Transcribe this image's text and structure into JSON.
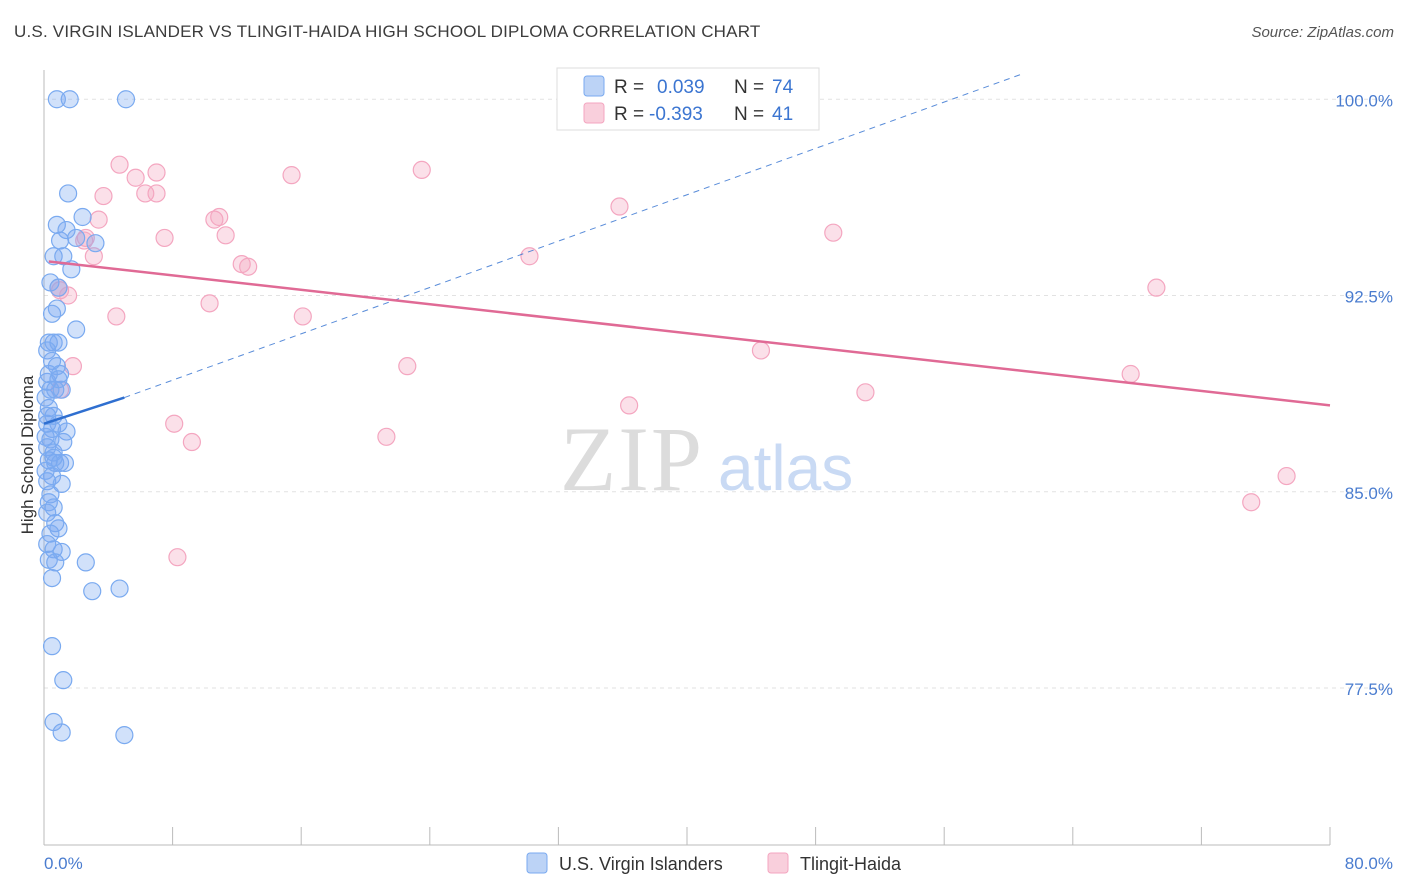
{
  "chart_data": {
    "type": "scatter",
    "title": "U.S. VIRGIN ISLANDER VS TLINGIT-HAIDA HIGH SCHOOL DIPLOMA CORRELATION CHART",
    "source": "Source: ZipAtlas.com",
    "ylabel": "High School Diploma",
    "xlabel": "",
    "xlim": [
      0,
      80
    ],
    "ylim": [
      71.5,
      101.5
    ],
    "x_tick_labels": [
      "0.0%",
      "80.0%"
    ],
    "y_ticks": [
      77.5,
      85.0,
      92.5,
      100.0
    ],
    "y_tick_labels": [
      "77.5%",
      "85.0%",
      "92.5%",
      "100.0%"
    ],
    "watermark": {
      "zip": "ZIP",
      "atlas": "atlas"
    },
    "legend": {
      "entries": [
        {
          "r_label": "R =",
          "r_value": "0.039",
          "n_label": "N =",
          "n_value": "74"
        },
        {
          "r_label": "R =",
          "r_value": "-0.393",
          "n_label": "N =",
          "n_value": "41"
        }
      ]
    },
    "series": [
      {
        "name": "U.S. Virgin Islanders",
        "color": "#7aaaf0",
        "line_color": "#2f6fd0",
        "trend": {
          "x": [
            0.0,
            5.0
          ],
          "y": [
            87.6,
            88.6
          ]
        },
        "trend_ext": {
          "x": [
            5.0,
            61.0
          ],
          "y": [
            88.6,
            101.0
          ]
        },
        "points": [
          [
            0.8,
            100.0
          ],
          [
            1.6,
            100.0
          ],
          [
            5.1,
            100.0
          ],
          [
            1.5,
            96.4
          ],
          [
            2.4,
            95.5
          ],
          [
            0.8,
            95.2
          ],
          [
            1.0,
            94.6
          ],
          [
            1.4,
            95.0
          ],
          [
            3.2,
            94.5
          ],
          [
            2.0,
            94.7
          ],
          [
            0.6,
            94.0
          ],
          [
            1.2,
            94.0
          ],
          [
            1.7,
            93.5
          ],
          [
            0.4,
            93.0
          ],
          [
            0.9,
            92.8
          ],
          [
            0.5,
            91.8
          ],
          [
            0.8,
            92.0
          ],
          [
            2.0,
            91.2
          ],
          [
            0.3,
            90.7
          ],
          [
            0.6,
            90.7
          ],
          [
            0.9,
            90.7
          ],
          [
            0.2,
            90.4
          ],
          [
            0.5,
            90.0
          ],
          [
            0.8,
            89.8
          ],
          [
            1.0,
            89.5
          ],
          [
            0.2,
            89.2
          ],
          [
            0.4,
            88.9
          ],
          [
            0.7,
            88.9
          ],
          [
            1.1,
            88.9
          ],
          [
            0.1,
            88.6
          ],
          [
            0.3,
            88.2
          ],
          [
            0.6,
            87.9
          ],
          [
            0.9,
            87.6
          ],
          [
            0.2,
            87.6
          ],
          [
            0.5,
            87.4
          ],
          [
            1.4,
            87.3
          ],
          [
            0.1,
            87.1
          ],
          [
            0.4,
            87.0
          ],
          [
            1.2,
            86.9
          ],
          [
            0.2,
            86.7
          ],
          [
            0.6,
            86.5
          ],
          [
            0.3,
            86.2
          ],
          [
            0.7,
            86.1
          ],
          [
            1.0,
            86.1
          ],
          [
            1.3,
            86.1
          ],
          [
            0.1,
            85.8
          ],
          [
            0.5,
            85.6
          ],
          [
            0.2,
            85.4
          ],
          [
            1.1,
            85.3
          ],
          [
            0.4,
            84.9
          ],
          [
            0.3,
            84.6
          ],
          [
            0.6,
            84.4
          ],
          [
            0.2,
            84.2
          ],
          [
            0.7,
            83.8
          ],
          [
            0.9,
            83.6
          ],
          [
            0.4,
            83.4
          ],
          [
            0.2,
            83.0
          ],
          [
            0.6,
            82.8
          ],
          [
            1.1,
            82.7
          ],
          [
            0.3,
            82.4
          ],
          [
            0.7,
            82.3
          ],
          [
            2.6,
            82.3
          ],
          [
            0.5,
            81.7
          ],
          [
            3.0,
            81.2
          ],
          [
            4.7,
            81.3
          ],
          [
            0.5,
            79.1
          ],
          [
            1.2,
            77.8
          ],
          [
            0.6,
            76.2
          ],
          [
            1.1,
            75.8
          ],
          [
            5.0,
            75.7
          ],
          [
            0.3,
            89.5
          ],
          [
            0.9,
            89.3
          ],
          [
            0.2,
            87.9
          ],
          [
            0.6,
            86.3
          ]
        ]
      },
      {
        "name": "Tlingit-Haida",
        "color": "#f4a6c0",
        "line_color": "#e06a95",
        "trend": {
          "x": [
            0.3,
            80.0
          ],
          "y": [
            93.8,
            88.3
          ]
        },
        "points": [
          [
            4.7,
            97.5
          ],
          [
            5.7,
            97.0
          ],
          [
            7.0,
            97.2
          ],
          [
            15.4,
            97.1
          ],
          [
            23.5,
            97.3
          ],
          [
            3.7,
            96.3
          ],
          [
            6.3,
            96.4
          ],
          [
            7.0,
            96.4
          ],
          [
            35.8,
            95.9
          ],
          [
            3.4,
            95.4
          ],
          [
            10.6,
            95.4
          ],
          [
            10.9,
            95.5
          ],
          [
            2.6,
            94.7
          ],
          [
            7.5,
            94.7
          ],
          [
            11.3,
            94.8
          ],
          [
            49.1,
            94.9
          ],
          [
            3.1,
            94.0
          ],
          [
            30.2,
            94.0
          ],
          [
            12.3,
            93.7
          ],
          [
            12.7,
            93.6
          ],
          [
            1.0,
            92.7
          ],
          [
            1.5,
            92.5
          ],
          [
            10.3,
            92.2
          ],
          [
            16.1,
            91.7
          ],
          [
            4.5,
            91.7
          ],
          [
            69.2,
            92.8
          ],
          [
            44.6,
            90.4
          ],
          [
            22.6,
            89.8
          ],
          [
            1.8,
            89.8
          ],
          [
            67.6,
            89.5
          ],
          [
            1.0,
            88.9
          ],
          [
            51.1,
            88.8
          ],
          [
            36.4,
            88.3
          ],
          [
            8.1,
            87.6
          ],
          [
            21.3,
            87.1
          ],
          [
            9.2,
            86.9
          ],
          [
            77.3,
            85.6
          ],
          [
            75.1,
            84.6
          ],
          [
            8.3,
            82.5
          ],
          [
            0.9,
            92.8
          ],
          [
            2.5,
            94.6
          ]
        ]
      }
    ]
  }
}
